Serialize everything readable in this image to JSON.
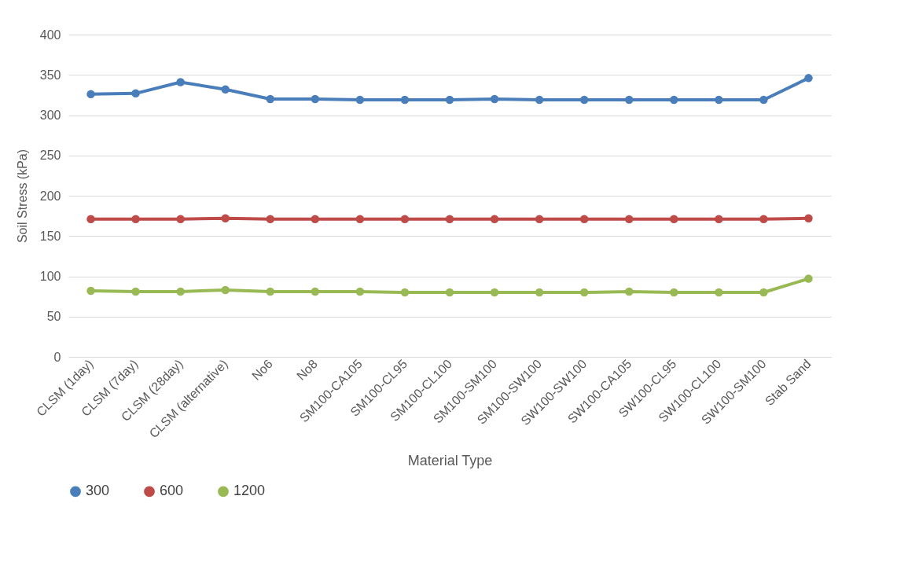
{
  "chart_data": {
    "type": "line",
    "xlabel": "Material Type",
    "ylabel": "Soil Stress (kPa)",
    "categories": [
      "CLSM (1day)",
      "CLSM (7day)",
      "CLSM (28day)",
      "CLSM (alternative)",
      "No6",
      "No8",
      "SM100-CA105",
      "SM100-CL95",
      "SM100-CL100",
      "SM100-SM100",
      "SM100-SW100",
      "SW100-SW100",
      "SW100-CA105",
      "SW100-CL95",
      "SW100-CL100",
      "SW100-SM100",
      "Stab Sand"
    ],
    "series": [
      {
        "name": "300",
        "color": "#4a7ebb",
        "values": [
          326,
          327,
          341,
          332,
          320,
          320,
          319,
          319,
          319,
          320,
          319,
          319,
          319,
          319,
          319,
          319,
          346
        ]
      },
      {
        "name": "600",
        "color": "#be4b48",
        "values": [
          171,
          171,
          171,
          172,
          171,
          171,
          171,
          171,
          171,
          171,
          171,
          171,
          171,
          171,
          171,
          171,
          172
        ]
      },
      {
        "name": "1200",
        "color": "#98b954",
        "values": [
          82,
          81,
          81,
          83,
          81,
          81,
          81,
          80,
          80,
          80,
          80,
          80,
          81,
          80,
          80,
          80,
          97
        ]
      }
    ],
    "ylim": [
      0,
      400
    ],
    "yticks": [
      0,
      50,
      100,
      150,
      200,
      250,
      300,
      350,
      400
    ],
    "grid": "y",
    "legend": "bottom",
    "marker": "circle",
    "line_style": "solid"
  }
}
